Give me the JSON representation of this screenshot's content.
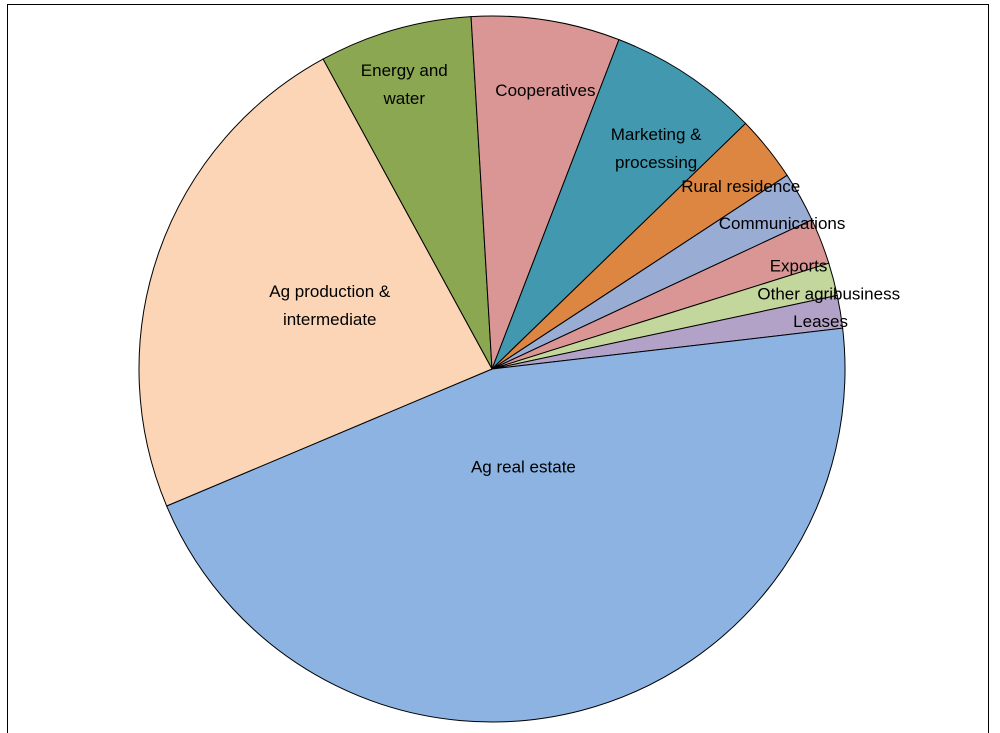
{
  "chart_data": {
    "type": "pie",
    "title": "",
    "legend": "none",
    "labels_on_slices": true,
    "slices": [
      {
        "label": "Energy and water",
        "label_lines": [
          "Energy and",
          "water"
        ],
        "value": 7.0,
        "color": "#8ba752"
      },
      {
        "label": "Cooperatives",
        "label_lines": [
          "Cooperatives"
        ],
        "value": 6.8,
        "color": "#d99694"
      },
      {
        "label": "Marketing & processing",
        "label_lines": [
          "Marketing &",
          "processing"
        ],
        "value": 6.9,
        "color": "#4198af"
      },
      {
        "label": "Rural residence",
        "label_lines": [
          "Rural residence"
        ],
        "value": 3.0,
        "color": "#dd8642"
      },
      {
        "label": "Communications",
        "label_lines": [
          "Communications"
        ],
        "value": 2.3,
        "color": "#98acd4"
      },
      {
        "label": "Exports",
        "label_lines": [
          "Exports"
        ],
        "value": 2.1,
        "color": "#d99694"
      },
      {
        "label": "Other agribusiness",
        "label_lines": [
          "Other agribusiness"
        ],
        "value": 1.5,
        "color": "#c3d69b"
      },
      {
        "label": "Leases",
        "label_lines": [
          "Leases"
        ],
        "value": 1.5,
        "color": "#b3a2c7"
      },
      {
        "label": "Ag real estate",
        "label_lines": [
          "Ag real estate"
        ],
        "value": 45.5,
        "color": "#8db3e2"
      },
      {
        "label": "Ag production & intermediate",
        "label_lines": [
          "Ag production &",
          "intermediate"
        ],
        "value": 23.4,
        "color": "#fbd5b5"
      }
    ]
  }
}
